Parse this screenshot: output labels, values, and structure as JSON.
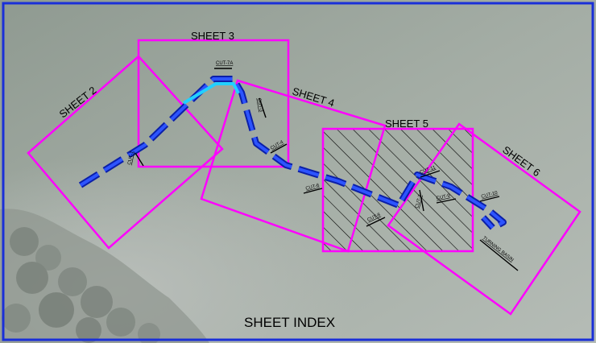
{
  "title": "SHEET INDEX",
  "sheets": [
    {
      "id": "sheet-2",
      "label": "SHEET 2"
    },
    {
      "id": "sheet-3",
      "label": "SHEET 3"
    },
    {
      "id": "sheet-4",
      "label": "SHEET 4"
    },
    {
      "id": "sheet-5",
      "label": "SHEET 5",
      "highlighted": true
    },
    {
      "id": "sheet-6",
      "label": "SHEET 6"
    }
  ],
  "cut_labels": [
    "CUT-7A",
    "CUT-3",
    "CUT-1",
    "CUT-4",
    "CUT-6",
    "CUT-8",
    "CUT-7",
    "CUT-9",
    "CUT-10",
    "CUT-11"
  ],
  "feature_label": "TURNING BASIN",
  "colors": {
    "border": "#1a2fd8",
    "sheet_outline": "#ff00ff",
    "channel": "#1e3fe0",
    "channel_highlight": "#22d0ff",
    "hatch": "#000000",
    "background": "#9aa59c"
  }
}
